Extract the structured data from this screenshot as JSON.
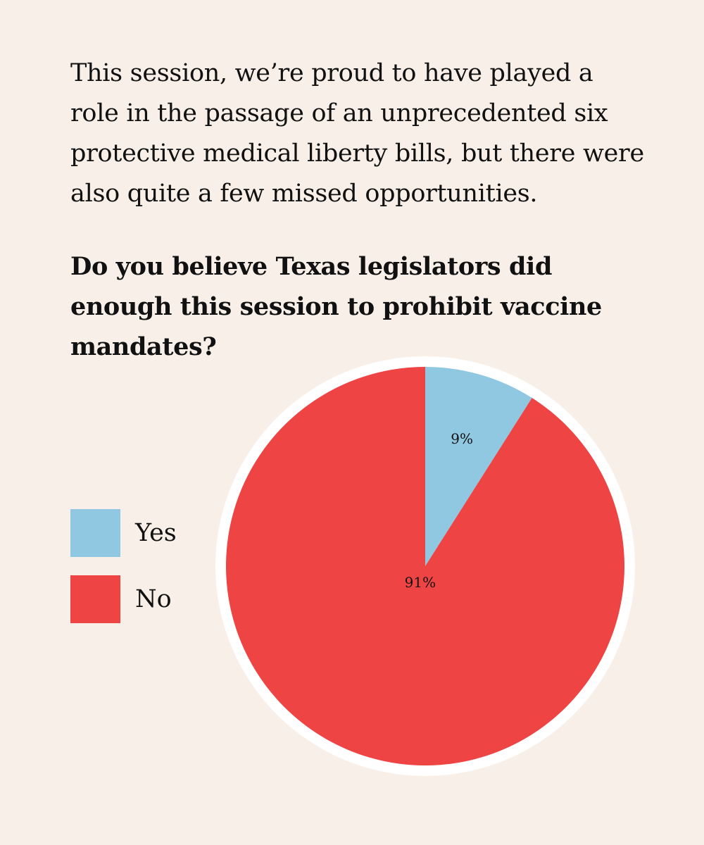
{
  "intro": {
    "text": "This session, we’re proud to have played a role in the passage of an unprecedented six protective medical liberty bills, but there were also quite a few missed opportunities."
  },
  "question": {
    "text": "Do you believe Texas legislators did enough this session to prohibit vaccine mandates?"
  },
  "legend": {
    "items": [
      {
        "label": "Yes",
        "color": "#90c8e2"
      },
      {
        "label": "No",
        "color": "#ee4444"
      }
    ]
  },
  "chart_data": {
    "type": "pie",
    "title": "",
    "categories": [
      "Yes",
      "No"
    ],
    "values": [
      9,
      91
    ],
    "value_labels": [
      "9%",
      "91%"
    ],
    "colors": [
      "#90c8e2",
      "#ee4444"
    ],
    "start_angle": "12 o'clock",
    "direction": "clockwise",
    "outline_color": "#ffffff",
    "legend_position": "left"
  }
}
